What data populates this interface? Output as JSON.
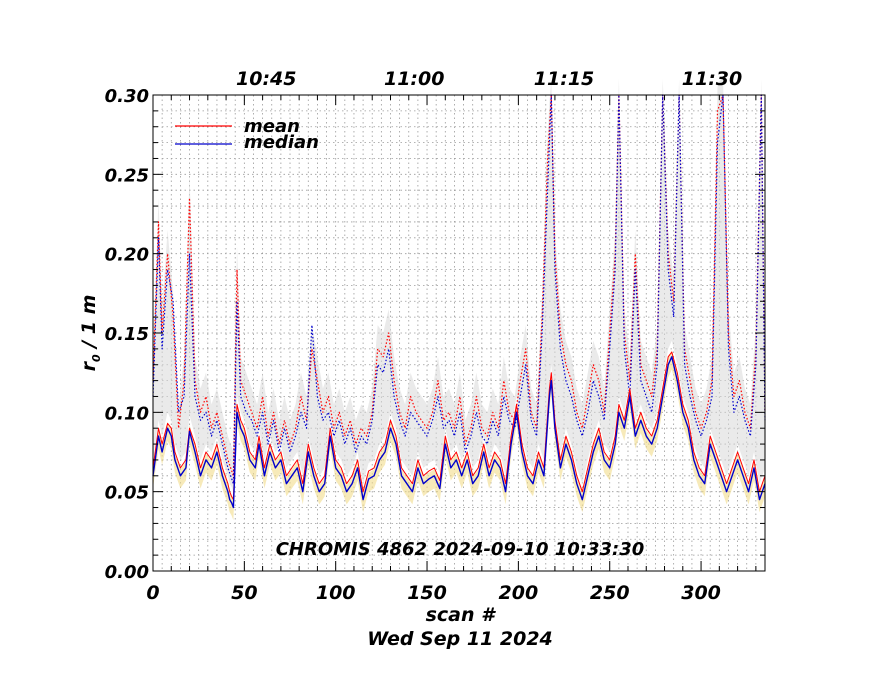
{
  "chart_data": {
    "type": "line",
    "xlabel": "scan #",
    "ylabel_main": "r",
    "ylabel_sub": "0",
    "ylabel_unit": " / 1 m",
    "date_label": "Wed Sep 11 2024",
    "annotation": "CHROMIS 4862 2024-09-10 10:33:30",
    "xlim": [
      0,
      335
    ],
    "ylim": [
      0.0,
      0.3
    ],
    "x_ticks": [
      "0",
      "50",
      "100",
      "150",
      "200",
      "250",
      "300"
    ],
    "y_ticks": [
      "0.00",
      "0.05",
      "0.10",
      "0.15",
      "0.20",
      "0.25",
      "0.30"
    ],
    "top_axis_ticks": [
      {
        "label": "10:45",
        "scan": 62
      },
      {
        "label": "11:00",
        "scan": 143
      },
      {
        "label": "11:15",
        "scan": 225
      },
      {
        "label": "11:30",
        "scan": 306
      }
    ],
    "legend": [
      {
        "name": "mean",
        "color": "#ff0000"
      },
      {
        "name": "median",
        "color": "#0000cc"
      }
    ],
    "grid": true,
    "legend_position": "top-left",
    "series": [
      {
        "name": "median",
        "color": "#0000cc",
        "x": [
          0,
          3,
          5,
          8,
          10,
          12,
          15,
          18,
          20,
          23,
          26,
          29,
          32,
          35,
          38,
          41,
          42,
          43,
          44,
          46,
          48,
          50,
          53,
          56,
          58,
          61,
          64,
          67,
          70,
          73,
          76,
          79,
          82,
          85,
          88,
          91,
          94,
          97,
          100,
          103,
          106,
          109,
          112,
          115,
          118,
          121,
          124,
          127,
          130,
          133,
          136,
          139,
          142,
          145,
          148,
          151,
          154,
          157,
          160,
          163,
          166,
          169,
          172,
          175,
          178,
          181,
          184,
          187,
          190,
          193,
          196,
          199,
          202,
          205,
          208,
          211,
          214,
          217,
          218,
          220,
          223,
          226,
          229,
          232,
          235,
          238,
          241,
          244,
          247,
          250,
          253,
          255,
          258,
          261,
          264,
          267,
          270,
          273,
          276,
          279,
          282,
          284,
          287,
          290,
          293,
          296,
          299,
          302,
          305,
          308,
          311,
          314,
          317,
          320,
          323,
          326,
          329,
          332,
          335
        ],
        "values": [
          0.06,
          0.085,
          0.075,
          0.09,
          0.085,
          0.07,
          0.06,
          0.065,
          0.088,
          0.075,
          0.06,
          0.07,
          0.065,
          0.075,
          0.06,
          0.05,
          0.045,
          0.043,
          0.04,
          0.1,
          0.09,
          0.085,
          0.07,
          0.065,
          0.08,
          0.06,
          0.075,
          0.065,
          0.07,
          0.055,
          0.06,
          0.065,
          0.05,
          0.075,
          0.06,
          0.05,
          0.055,
          0.085,
          0.065,
          0.06,
          0.05,
          0.055,
          0.065,
          0.045,
          0.058,
          0.06,
          0.07,
          0.075,
          0.09,
          0.08,
          0.06,
          0.055,
          0.05,
          0.065,
          0.055,
          0.058,
          0.06,
          0.052,
          0.08,
          0.065,
          0.07,
          0.06,
          0.07,
          0.055,
          0.06,
          0.075,
          0.06,
          0.07,
          0.065,
          0.05,
          0.08,
          0.1,
          0.075,
          0.06,
          0.055,
          0.07,
          0.06,
          0.11,
          0.12,
          0.09,
          0.065,
          0.08,
          0.07,
          0.055,
          0.045,
          0.06,
          0.075,
          0.085,
          0.07,
          0.065,
          0.08,
          0.1,
          0.09,
          0.11,
          0.085,
          0.095,
          0.085,
          0.08,
          0.09,
          0.11,
          0.13,
          0.135,
          0.12,
          0.1,
          0.09,
          0.07,
          0.06,
          0.055,
          0.08,
          0.07,
          0.06,
          0.05,
          0.06,
          0.07,
          0.06,
          0.05,
          0.065,
          0.045,
          0.055
        ]
      },
      {
        "name": "mean",
        "color": "#ff0000",
        "x": [
          0,
          3,
          5,
          8,
          10,
          12,
          15,
          18,
          20,
          23,
          26,
          29,
          32,
          35,
          38,
          41,
          42,
          43,
          44,
          46,
          48,
          50,
          53,
          56,
          58,
          61,
          64,
          67,
          70,
          73,
          76,
          79,
          82,
          85,
          88,
          91,
          94,
          97,
          100,
          103,
          106,
          109,
          112,
          115,
          118,
          121,
          124,
          127,
          130,
          133,
          136,
          139,
          142,
          145,
          148,
          151,
          154,
          157,
          160,
          163,
          166,
          169,
          172,
          175,
          178,
          181,
          184,
          187,
          190,
          193,
          196,
          199,
          202,
          205,
          208,
          211,
          214,
          217,
          218,
          220,
          223,
          226,
          229,
          232,
          235,
          238,
          241,
          244,
          247,
          250,
          253,
          255,
          258,
          261,
          264,
          267,
          270,
          273,
          276,
          279,
          282,
          284,
          287,
          290,
          293,
          296,
          299,
          302,
          305,
          308,
          311,
          314,
          317,
          320,
          323,
          326,
          329,
          332,
          335
        ],
        "values": [
          0.065,
          0.09,
          0.08,
          0.093,
          0.09,
          0.075,
          0.065,
          0.07,
          0.09,
          0.08,
          0.065,
          0.075,
          0.07,
          0.08,
          0.065,
          0.055,
          0.05,
          0.047,
          0.045,
          0.105,
          0.095,
          0.09,
          0.075,
          0.07,
          0.085,
          0.065,
          0.08,
          0.07,
          0.075,
          0.06,
          0.065,
          0.07,
          0.055,
          0.08,
          0.065,
          0.055,
          0.06,
          0.09,
          0.07,
          0.065,
          0.055,
          0.06,
          0.07,
          0.05,
          0.063,
          0.065,
          0.075,
          0.08,
          0.095,
          0.085,
          0.065,
          0.06,
          0.055,
          0.07,
          0.06,
          0.063,
          0.065,
          0.057,
          0.085,
          0.07,
          0.075,
          0.065,
          0.075,
          0.06,
          0.065,
          0.08,
          0.065,
          0.075,
          0.07,
          0.055,
          0.085,
          0.105,
          0.08,
          0.065,
          0.06,
          0.075,
          0.065,
          0.115,
          0.125,
          0.095,
          0.07,
          0.085,
          0.075,
          0.06,
          0.05,
          0.065,
          0.08,
          0.09,
          0.075,
          0.07,
          0.085,
          0.105,
          0.095,
          0.115,
          0.09,
          0.1,
          0.09,
          0.085,
          0.095,
          0.115,
          0.135,
          0.138,
          0.125,
          0.105,
          0.095,
          0.075,
          0.065,
          0.06,
          0.085,
          0.075,
          0.065,
          0.055,
          0.065,
          0.075,
          0.065,
          0.055,
          0.07,
          0.05,
          0.06
        ]
      },
      {
        "name": "mean (dotted)",
        "color": "#ff0000",
        "x": [
          0,
          3,
          5,
          8,
          11,
          14,
          17,
          20,
          23,
          26,
          29,
          32,
          35,
          38,
          41,
          44,
          46,
          48,
          51,
          54,
          57,
          60,
          63,
          66,
          69,
          72,
          75,
          78,
          81,
          84,
          87,
          90,
          93,
          96,
          99,
          102,
          105,
          108,
          111,
          114,
          117,
          120,
          123,
          126,
          129,
          132,
          135,
          138,
          141,
          144,
          147,
          150,
          153,
          156,
          159,
          162,
          165,
          168,
          171,
          174,
          177,
          180,
          183,
          186,
          189,
          192,
          195,
          198,
          201,
          204,
          207,
          210,
          213,
          216,
          218,
          220,
          223,
          226,
          229,
          232,
          235,
          238,
          241,
          244,
          247,
          250,
          253,
          255,
          258,
          261,
          264,
          267,
          270,
          273,
          276,
          279,
          282,
          285,
          288,
          291,
          294,
          297,
          300,
          303,
          306,
          309,
          312,
          315,
          318,
          321,
          324,
          327,
          330,
          333,
          335
        ],
        "values": [
          0.12,
          0.22,
          0.15,
          0.2,
          0.16,
          0.09,
          0.12,
          0.235,
          0.12,
          0.1,
          0.11,
          0.09,
          0.1,
          0.085,
          0.07,
          0.06,
          0.19,
          0.12,
          0.11,
          0.1,
          0.09,
          0.11,
          0.085,
          0.1,
          0.08,
          0.095,
          0.08,
          0.09,
          0.11,
          0.095,
          0.14,
          0.12,
          0.1,
          0.11,
          0.09,
          0.1,
          0.085,
          0.095,
          0.08,
          0.09,
          0.085,
          0.1,
          0.14,
          0.135,
          0.15,
          0.12,
          0.1,
          0.09,
          0.11,
          0.1,
          0.095,
          0.09,
          0.1,
          0.12,
          0.095,
          0.1,
          0.09,
          0.11,
          0.08,
          0.09,
          0.11,
          0.09,
          0.085,
          0.1,
          0.09,
          0.12,
          0.1,
          0.095,
          0.12,
          0.14,
          0.1,
          0.09,
          0.16,
          0.26,
          0.3,
          0.2,
          0.15,
          0.13,
          0.12,
          0.1,
          0.09,
          0.11,
          0.13,
          0.12,
          0.1,
          0.15,
          0.2,
          0.3,
          0.15,
          0.12,
          0.2,
          0.13,
          0.12,
          0.11,
          0.14,
          0.3,
          0.2,
          0.17,
          0.3,
          0.14,
          0.12,
          0.1,
          0.09,
          0.1,
          0.12,
          0.29,
          0.3,
          0.15,
          0.11,
          0.12,
          0.1,
          0.09,
          0.14,
          0.3,
          0.1
        ]
      },
      {
        "name": "median (dotted)",
        "color": "#0000cc",
        "x": [
          0,
          3,
          5,
          8,
          11,
          14,
          17,
          20,
          23,
          26,
          29,
          32,
          35,
          38,
          41,
          44,
          46,
          48,
          51,
          54,
          57,
          60,
          63,
          66,
          69,
          72,
          75,
          78,
          81,
          84,
          87,
          90,
          93,
          96,
          99,
          102,
          105,
          108,
          111,
          114,
          117,
          120,
          123,
          126,
          129,
          132,
          135,
          138,
          141,
          144,
          147,
          150,
          153,
          156,
          159,
          162,
          165,
          168,
          171,
          174,
          177,
          180,
          183,
          186,
          189,
          192,
          195,
          198,
          201,
          204,
          207,
          210,
          213,
          216,
          218,
          220,
          223,
          226,
          229,
          232,
          235,
          238,
          241,
          244,
          247,
          250,
          253,
          255,
          258,
          261,
          264,
          267,
          270,
          273,
          276,
          279,
          282,
          285,
          288,
          291,
          294,
          297,
          300,
          303,
          306,
          309,
          312,
          315,
          318,
          321,
          324,
          327,
          330,
          333,
          335
        ],
        "values": [
          0.11,
          0.21,
          0.14,
          0.19,
          0.17,
          0.1,
          0.11,
          0.2,
          0.11,
          0.095,
          0.1,
          0.085,
          0.095,
          0.08,
          0.065,
          0.055,
          0.17,
          0.11,
          0.1,
          0.095,
          0.085,
          0.1,
          0.08,
          0.095,
          0.075,
          0.09,
          0.075,
          0.085,
          0.1,
          0.09,
          0.155,
          0.11,
          0.095,
          0.1,
          0.085,
          0.095,
          0.08,
          0.09,
          0.075,
          0.085,
          0.08,
          0.095,
          0.13,
          0.125,
          0.14,
          0.11,
          0.095,
          0.085,
          0.1,
          0.095,
          0.09,
          0.085,
          0.095,
          0.11,
          0.09,
          0.095,
          0.085,
          0.1,
          0.075,
          0.085,
          0.1,
          0.085,
          0.08,
          0.095,
          0.085,
          0.11,
          0.095,
          0.09,
          0.11,
          0.13,
          0.095,
          0.085,
          0.15,
          0.24,
          0.3,
          0.19,
          0.14,
          0.12,
          0.11,
          0.095,
          0.085,
          0.1,
          0.12,
          0.11,
          0.095,
          0.14,
          0.19,
          0.3,
          0.14,
          0.11,
          0.19,
          0.12,
          0.11,
          0.1,
          0.13,
          0.3,
          0.19,
          0.16,
          0.3,
          0.13,
          0.11,
          0.095,
          0.085,
          0.095,
          0.11,
          0.27,
          0.3,
          0.14,
          0.1,
          0.11,
          0.095,
          0.085,
          0.13,
          0.3,
          0.095
        ]
      }
    ]
  }
}
